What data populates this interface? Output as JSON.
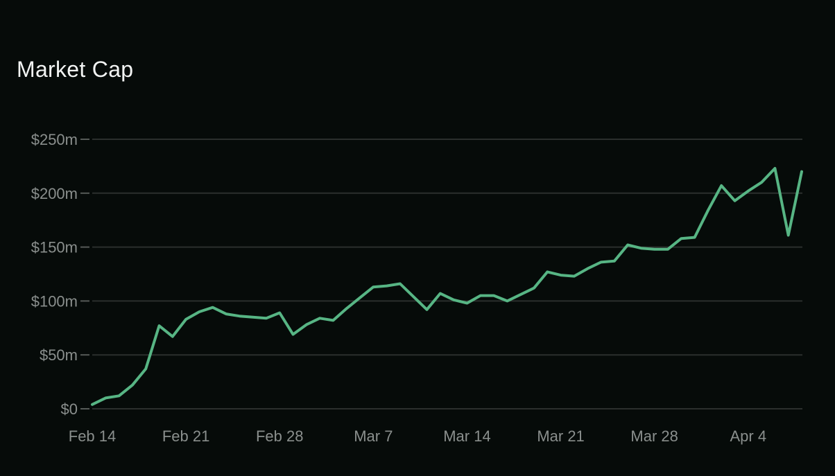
{
  "page": {
    "background_color": "#060b09",
    "title_color": "#f2f4f3"
  },
  "header": {
    "title": "Market Cap"
  },
  "chart_data": {
    "type": "line",
    "title": "Market Cap",
    "unit": "USD millions",
    "xlabel": "",
    "ylabel": "",
    "ylim": [
      0,
      250
    ],
    "grid": true,
    "legend": false,
    "line_color": "#57b584",
    "grid_color": "#2b2f2d",
    "tick_color": "#565b58",
    "label_color": "#8a8f8d",
    "x": [
      "Feb 14",
      "Feb 15",
      "Feb 16",
      "Feb 17",
      "Feb 18",
      "Feb 19",
      "Feb 20",
      "Feb 21",
      "Feb 22",
      "Feb 23",
      "Feb 24",
      "Feb 25",
      "Feb 26",
      "Feb 27",
      "Feb 28",
      "Mar 1",
      "Mar 2",
      "Mar 3",
      "Mar 4",
      "Mar 5",
      "Mar 6",
      "Mar 7",
      "Mar 8",
      "Mar 9",
      "Mar 10",
      "Mar 11",
      "Mar 12",
      "Mar 13",
      "Mar 14",
      "Mar 15",
      "Mar 16",
      "Mar 17",
      "Mar 18",
      "Mar 19",
      "Mar 20",
      "Mar 21",
      "Mar 22",
      "Mar 23",
      "Mar 24",
      "Mar 25",
      "Mar 26",
      "Mar 27",
      "Mar 28",
      "Mar 29",
      "Mar 30",
      "Mar 31",
      "Apr 1",
      "Apr 2",
      "Apr 3",
      "Apr 4",
      "Apr 5",
      "Apr 6",
      "Apr 7",
      "Apr 8"
    ],
    "values": [
      4,
      10,
      12,
      22,
      37,
      77,
      67,
      83,
      90,
      94,
      88,
      86,
      85,
      84,
      89,
      69,
      78,
      84,
      82,
      93,
      103,
      113,
      114,
      116,
      104,
      92,
      107,
      101,
      98,
      105,
      105,
      100,
      106,
      112,
      127,
      124,
      123,
      130,
      136,
      137,
      152,
      149,
      148,
      148,
      158,
      159,
      184,
      207,
      193,
      202,
      210,
      223,
      161,
      220
    ],
    "x_tick_labels": [
      "Feb 14",
      "Feb 21",
      "Feb 28",
      "Mar 7",
      "Mar 14",
      "Mar 21",
      "Mar 28",
      "Apr 4"
    ],
    "x_tick_indices": [
      0,
      7,
      14,
      21,
      28,
      35,
      42,
      49
    ],
    "y_ticks": [
      {
        "label": "$250m",
        "value": 250
      },
      {
        "label": "$200m",
        "value": 200
      },
      {
        "label": "$150m",
        "value": 150
      },
      {
        "label": "$100m",
        "value": 100
      },
      {
        "label": "$50m",
        "value": 50
      },
      {
        "label": "$0",
        "value": 0
      }
    ]
  }
}
